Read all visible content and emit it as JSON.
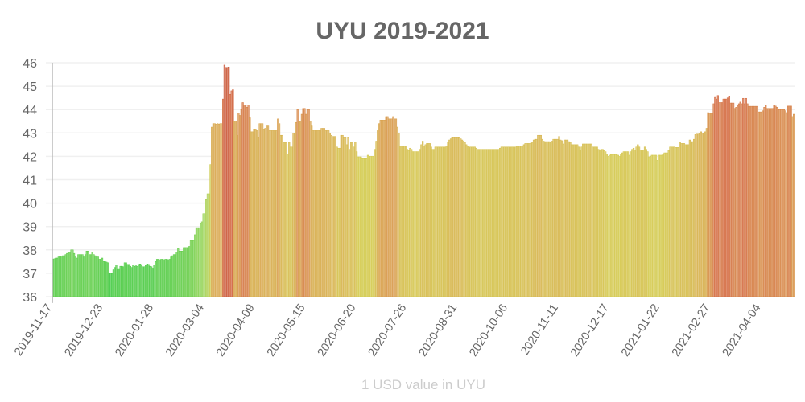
{
  "chart_data": {
    "type": "bar",
    "title": "UYU 2019-2021",
    "xlabel": "1 USD value in UYU",
    "ylabel": "",
    "ylim": [
      36,
      46
    ],
    "y_ticks": [
      "36",
      "37",
      "38",
      "39",
      "40",
      "41",
      "42",
      "43",
      "44",
      "45",
      "46"
    ],
    "x_ticks": [
      "2019-11-17",
      "2019-12-23",
      "2020-01-28",
      "2020-03-04",
      "2020-04-09",
      "2020-05-15",
      "2020-06-20",
      "2020-07-26",
      "2020-08-31",
      "2020-10-06",
      "2020-11-11",
      "2020-12-17",
      "2021-01-22",
      "2021-02-27",
      "2021-04-04"
    ],
    "x_frequency": "daily",
    "grid": true,
    "legend": "none",
    "color_scale": [
      "#3cc83c",
      "#96d250",
      "#d2c846",
      "#d7a046",
      "#d2643a",
      "#c85032"
    ],
    "values": [
      37.6,
      37.62,
      37.65,
      37.65,
      37.7,
      37.72,
      37.7,
      37.75,
      37.75,
      37.8,
      37.85,
      37.9,
      37.9,
      38.0,
      38.0,
      37.85,
      37.7,
      37.65,
      37.8,
      37.8,
      37.8,
      37.8,
      37.7,
      37.8,
      37.95,
      37.95,
      37.8,
      37.8,
      37.9,
      37.8,
      37.75,
      37.7,
      37.7,
      37.6,
      37.6,
      37.65,
      37.5,
      37.5,
      37.48,
      37.45,
      37.0,
      37.0,
      37.0,
      37.15,
      37.25,
      37.35,
      37.2,
      37.2,
      37.3,
      37.3,
      37.28,
      37.45,
      37.45,
      37.38,
      37.38,
      37.3,
      37.25,
      37.35,
      37.3,
      37.32,
      37.3,
      37.38,
      37.4,
      37.35,
      37.28,
      37.28,
      37.35,
      37.4,
      37.38,
      37.3,
      37.28,
      37.22,
      37.35,
      37.5,
      37.6,
      37.6,
      37.58,
      37.6,
      37.6,
      37.58,
      37.6,
      37.6,
      37.58,
      37.6,
      37.7,
      37.75,
      37.8,
      37.8,
      37.9,
      38.05,
      37.95,
      37.95,
      37.95,
      38.1,
      38.1,
      38.1,
      38.1,
      38.15,
      38.4,
      38.4,
      38.4,
      38.65,
      38.95,
      38.95,
      38.95,
      39.15,
      39.2,
      39.55,
      39.55,
      40.15,
      40.4,
      40.4,
      41.65,
      43.25,
      43.4,
      43.4,
      43.38,
      43.4,
      43.38,
      43.4,
      43.4,
      44.45,
      45.9,
      45.8,
      45.8,
      45.82,
      44.65,
      44.8,
      44.85,
      43.5,
      43.5,
      42.9,
      43.85,
      43.75,
      44.0,
      44.3,
      44.2,
      44.2,
      44.1,
      44.2,
      43.65,
      43.05,
      43.05,
      43.15,
      43.15,
      43.1,
      42.8,
      43.4,
      43.4,
      43.4,
      43.15,
      43.2,
      43.3,
      43.3,
      43.1,
      43.1,
      43.1,
      43.1,
      43.1,
      43.1,
      43.6,
      43.4,
      42.9,
      42.9,
      42.6,
      42.6,
      42.6,
      42.1,
      42.6,
      42.4,
      42.4,
      43.0,
      43.0,
      43.45,
      44.0,
      43.5,
      43.5,
      43.8,
      44.05,
      44.05,
      43.8,
      44.0,
      44.0,
      43.5,
      43.3,
      43.1,
      43.1,
      43.1,
      43.1,
      43.1,
      43.1,
      43.2,
      43.2,
      43.2,
      43.1,
      43.1,
      43.1,
      43.0,
      42.9,
      42.85,
      42.85,
      42.85,
      42.4,
      42.35,
      42.35,
      42.9,
      42.9,
      42.8,
      42.8,
      42.5,
      42.8,
      42.3,
      42.6,
      42.6,
      42.4,
      42.6,
      42.2,
      41.98,
      41.98,
      41.98,
      41.9,
      41.9,
      41.9,
      41.9,
      42.05,
      42.0,
      42.0,
      42.0,
      42.0,
      42.3,
      42.65,
      43.1,
      43.4,
      43.55,
      43.55,
      43.55,
      43.55,
      43.7,
      43.7,
      43.6,
      43.6,
      43.6,
      43.7,
      43.6,
      43.6,
      43.25,
      43.0,
      42.45,
      42.45,
      42.45,
      42.45,
      42.45,
      42.3,
      42.25,
      42.35,
      42.3,
      42.2,
      42.2,
      42.2,
      42.2,
      42.2,
      42.3,
      42.5,
      42.65,
      42.45,
      42.5,
      42.55,
      42.55,
      42.55,
      42.4,
      42.3,
      42.3,
      42.4,
      42.4,
      42.4,
      42.4,
      42.4,
      42.4,
      42.4,
      42.4,
      42.45,
      42.6,
      42.7,
      42.75,
      42.8,
      42.8,
      42.8,
      42.8,
      42.8,
      42.8,
      42.75,
      42.7,
      42.65,
      42.6,
      42.5,
      42.45,
      42.4,
      42.4,
      42.4,
      42.4,
      42.4,
      42.35,
      42.3,
      42.3,
      42.3,
      42.3,
      42.3,
      42.3,
      42.3,
      42.3,
      42.3,
      42.3,
      42.3,
      42.3,
      42.3,
      42.3,
      42.3,
      42.3,
      42.35,
      42.4,
      42.4,
      42.4,
      42.4,
      42.4,
      42.4,
      42.4,
      42.4,
      42.4,
      42.4,
      42.4,
      42.45,
      42.45,
      42.45,
      42.45,
      42.45,
      42.5,
      42.55,
      42.55,
      42.55,
      42.55,
      42.56,
      42.6,
      42.7,
      42.73,
      42.73,
      42.9,
      42.9,
      42.9,
      42.73,
      42.65,
      42.63,
      42.63,
      42.63,
      42.63,
      42.6,
      42.65,
      42.73,
      42.73,
      42.73,
      42.73,
      42.85,
      42.7,
      42.67,
      42.53,
      42.7,
      42.7,
      42.7,
      42.63,
      42.6,
      42.5,
      42.5,
      42.5,
      42.5,
      42.5,
      42.4,
      42.27,
      42.4,
      42.53,
      42.53,
      42.53,
      42.53,
      42.53,
      42.53,
      42.53,
      42.4,
      42.4,
      42.4,
      42.4,
      42.3,
      42.27,
      42.3,
      42.3,
      42.25,
      42.2,
      42.1,
      42.0,
      42.05,
      42.08,
      42.08,
      42.08,
      42.08,
      42.08,
      42.05,
      42.0,
      42.1,
      42.15,
      42.2,
      42.2,
      42.2,
      42.2,
      42.05,
      42.2,
      42.3,
      42.35,
      42.27,
      42.4,
      42.5,
      42.4,
      42.27,
      42.27,
      42.27,
      42.4,
      42.3,
      42.2,
      41.98,
      42.0,
      42.05,
      42.05,
      42.05,
      42.05,
      41.83,
      42.05,
      42.05,
      42.05,
      42.1,
      42.15,
      42.15,
      42.15,
      42.25,
      42.4,
      42.4,
      42.4,
      42.4,
      42.38,
      42.38,
      42.38,
      42.6,
      42.55,
      42.55,
      42.55,
      42.5,
      42.5,
      42.5,
      42.7,
      42.63,
      42.63,
      42.73,
      42.93,
      42.95,
      42.95,
      43.0,
      43.05,
      43.0,
      43.0,
      43.05,
      43.2,
      43.87,
      43.84,
      43.84,
      43.84,
      44.25,
      44.52,
      44.45,
      44.6,
      44.3,
      44.3,
      44.3,
      44.45,
      44.45,
      44.45,
      44.5,
      44.55,
      44.28,
      44.28,
      44.28,
      44.05,
      44.1,
      44.18,
      44.25,
      44.32,
      44.25,
      44.48,
      44.25,
      44.48,
      44.25,
      44.14,
      44.14,
      44.14,
      44.14,
      44.14,
      44.14,
      44.14,
      43.9,
      43.9,
      43.9,
      43.95,
      44.1,
      44.18,
      44.05,
      44.05,
      44.05,
      44.05,
      44.05,
      44.18,
      44.15,
      44.1,
      44.0,
      44.0,
      44.0,
      44.0,
      44.0,
      43.95,
      43.87,
      44.15,
      44.15,
      44.15,
      43.7,
      43.8
    ]
  }
}
